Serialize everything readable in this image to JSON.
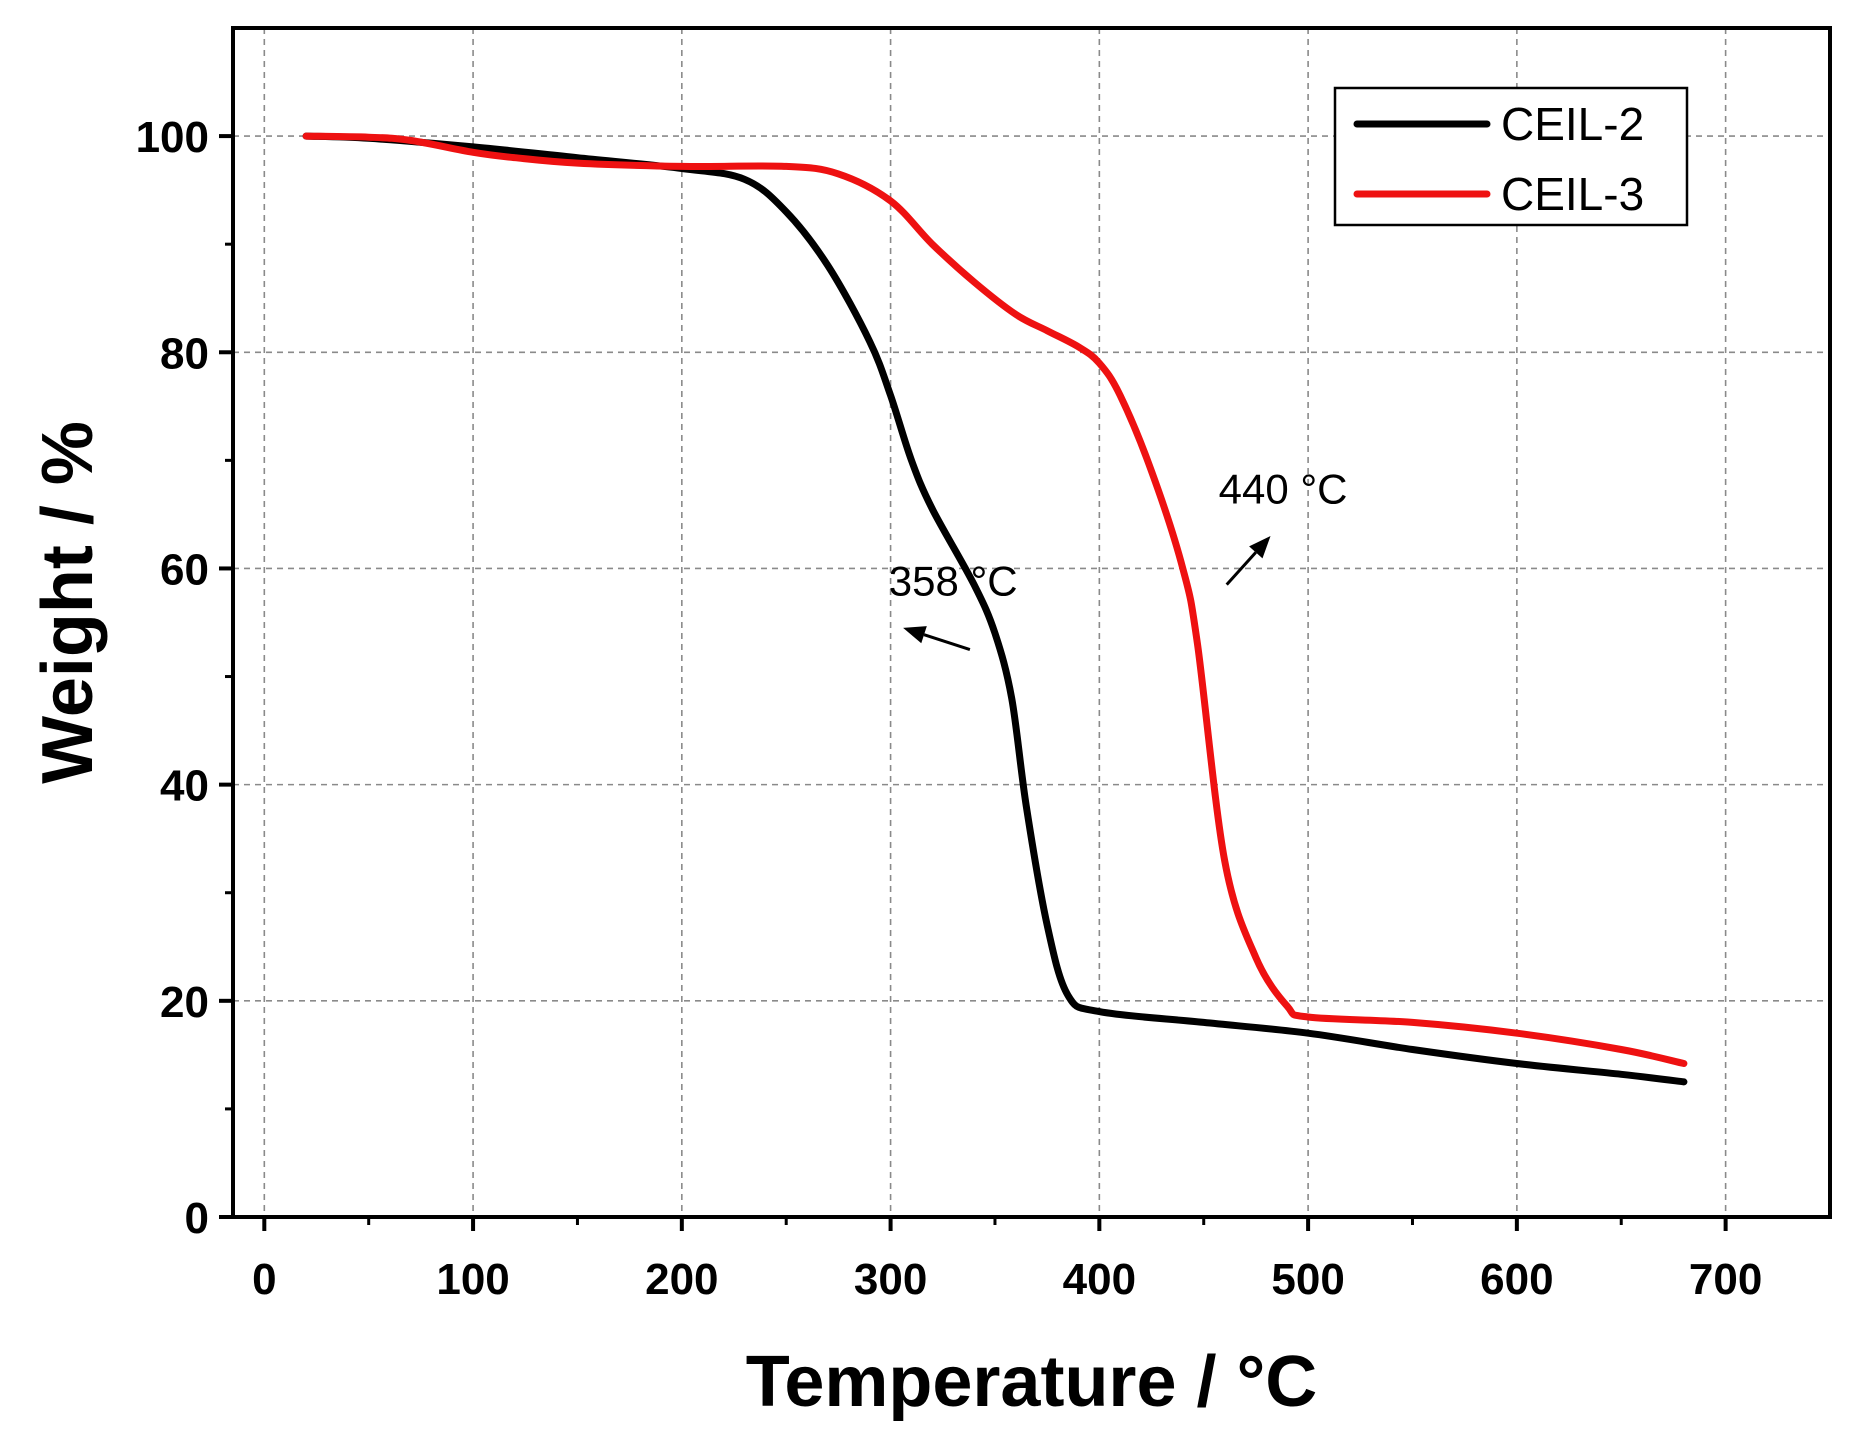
{
  "chart_data": {
    "type": "line",
    "title": "",
    "xlabel": "Temperature / °C",
    "ylabel": "Weight / %",
    "xlim": [
      -15,
      750
    ],
    "ylim": [
      0,
      110
    ],
    "xticks": [
      0,
      100,
      200,
      300,
      400,
      500,
      600,
      700
    ],
    "yticks": [
      0,
      20,
      40,
      60,
      80,
      100
    ],
    "xtick_labels": [
      "0",
      "100",
      "200",
      "300",
      "400",
      "500",
      "600",
      "700"
    ],
    "ytick_labels": [
      "0",
      "20",
      "40",
      "60",
      "80",
      "100"
    ],
    "grid": true,
    "legend_position": "top-right",
    "series": [
      {
        "name": "CEIL-2",
        "color": "#000000",
        "x": [
          20,
          50,
          100,
          150,
          200,
          230,
          250,
          270,
          290,
          300,
          310,
          320,
          340,
          350,
          358,
          365,
          375,
          385,
          400,
          450,
          500,
          550,
          600,
          650,
          680
        ],
        "y": [
          100,
          99.8,
          99,
          98,
          97,
          96,
          93,
          88,
          81,
          76,
          70,
          65.5,
          58.5,
          54,
          48,
          38,
          27,
          20.5,
          19,
          18,
          17,
          15.5,
          14.2,
          13.2,
          12.5
        ]
      },
      {
        "name": "CEIL-3",
        "color": "#ee1111",
        "x": [
          20,
          50,
          70,
          100,
          120,
          150,
          200,
          250,
          275,
          300,
          320,
          340,
          360,
          375,
          390,
          400,
          410,
          425,
          440,
          447,
          460,
          475,
          490,
          500,
          550,
          600,
          650,
          680
        ],
        "y": [
          100,
          99.9,
          99.6,
          98.5,
          98,
          97.5,
          97.2,
          97.2,
          96.5,
          94,
          90,
          86.5,
          83.5,
          82,
          80.5,
          79,
          76,
          69,
          60,
          53,
          33,
          24,
          19.5,
          18.5,
          18,
          17,
          15.5,
          14.2
        ]
      }
    ],
    "annotations": [
      {
        "text": "358 °C",
        "x": 330,
        "y": 57.5,
        "arrow_from": [
          338,
          52.5
        ],
        "arrow_to": [
          306,
          54.5
        ]
      },
      {
        "text": "440 °C",
        "x": 488,
        "y": 66,
        "arrow_from": [
          461,
          58.5
        ],
        "arrow_to": [
          482,
          63
        ]
      }
    ]
  }
}
